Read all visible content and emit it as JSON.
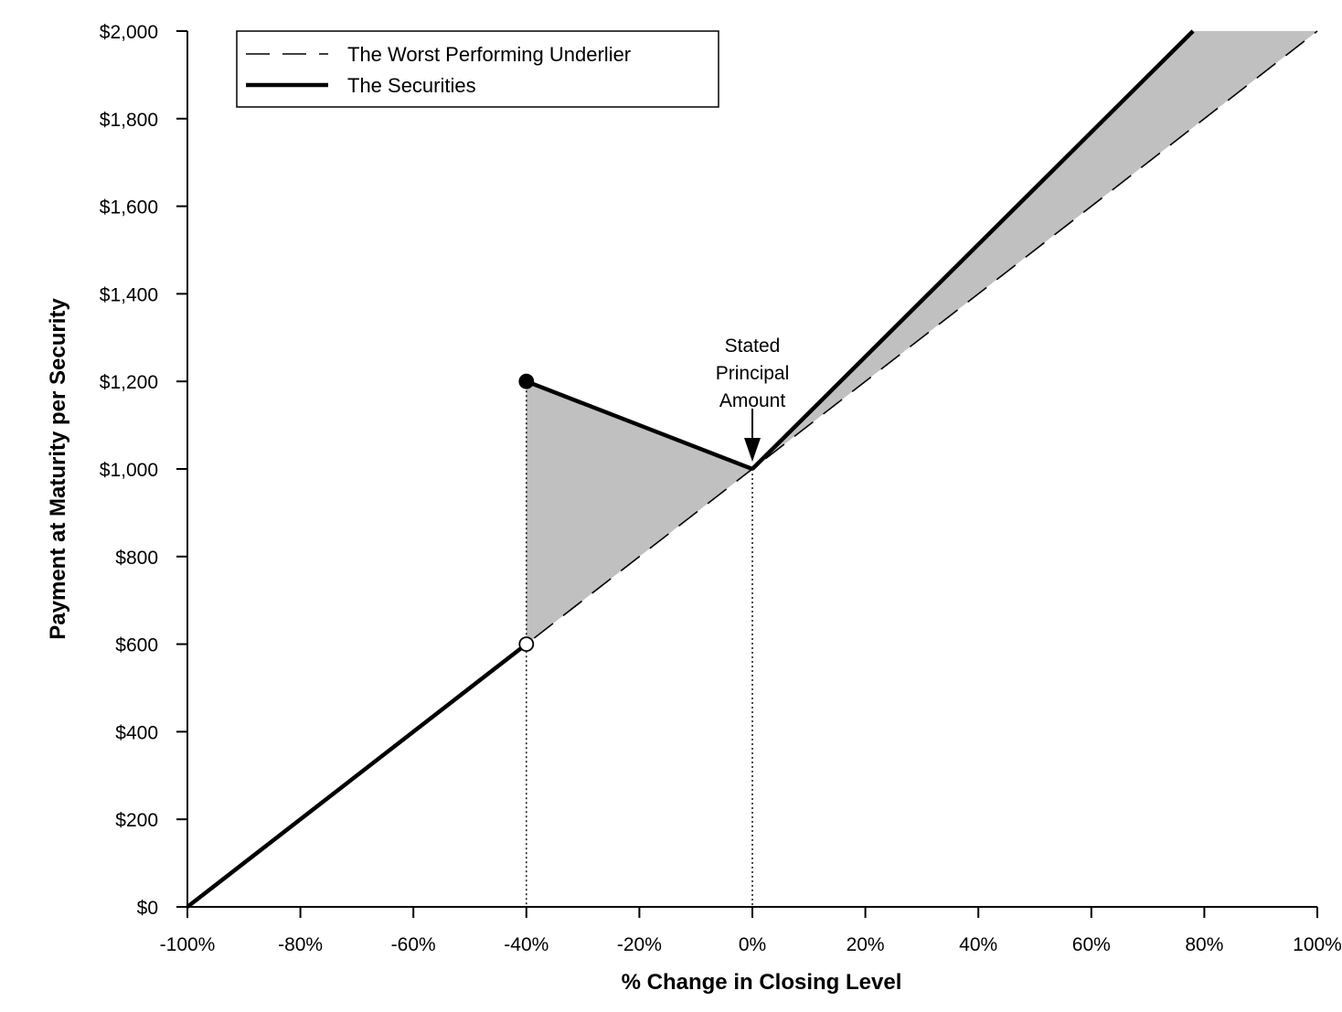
{
  "chart_data": {
    "type": "line",
    "xlabel": "% Change in Closing Level",
    "ylabel": "Payment at Maturity per Security",
    "xlim": [
      -100,
      100
    ],
    "ylim": [
      0,
      2000
    ],
    "x_ticks": [
      -100,
      -80,
      -60,
      -40,
      -20,
      0,
      20,
      40,
      60,
      80,
      100
    ],
    "x_tick_labels": [
      "-100%",
      "-80%",
      "-60%",
      "-40%",
      "-20%",
      "0%",
      "20%",
      "40%",
      "60%",
      "80%",
      "100%"
    ],
    "y_ticks": [
      0,
      200,
      400,
      600,
      800,
      1000,
      1200,
      1400,
      1600,
      1800,
      2000
    ],
    "y_tick_labels": [
      "$0",
      "$200",
      "$400",
      "$600",
      "$800",
      "$1,000",
      "$1,200",
      "$1,400",
      "$1,600",
      "$1,800",
      "$2,000"
    ],
    "grid": false,
    "legend_position": "top-left",
    "series": [
      {
        "name": "The Worst Performing Underlier",
        "style": "dashed",
        "x": [
          -100,
          100
        ],
        "y": [
          0,
          2000
        ]
      },
      {
        "name": "The Securities",
        "style": "solid-bold",
        "segments": [
          {
            "x": [
              -100,
              -40
            ],
            "y": [
              0,
              600
            ]
          },
          {
            "x": [
              -40,
              0
            ],
            "y": [
              1200,
              1000
            ]
          },
          {
            "x": [
              0,
              78
            ],
            "y": [
              1000,
              2000
            ]
          }
        ]
      }
    ],
    "markers": [
      {
        "x": -40,
        "y": 1200,
        "filled": true
      },
      {
        "x": -40,
        "y": 600,
        "filled": false
      }
    ],
    "shaded_regions": [
      {
        "x": [
          -40,
          -40,
          0
        ],
        "y": [
          600,
          1200,
          1000
        ],
        "color": "#c0c0c0"
      },
      {
        "x": [
          0,
          78,
          100
        ],
        "y": [
          1000,
          2000,
          2000
        ],
        "color": "#c0c0c0"
      }
    ],
    "vertical_reference_lines": [
      -40,
      0
    ],
    "annotation": {
      "lines": [
        "Stated",
        "Principal",
        "Amount"
      ],
      "x": 0,
      "y": 1000
    },
    "colors": {
      "line": "#000000",
      "shade": "#c0c0c0",
      "background": "#ffffff"
    }
  }
}
